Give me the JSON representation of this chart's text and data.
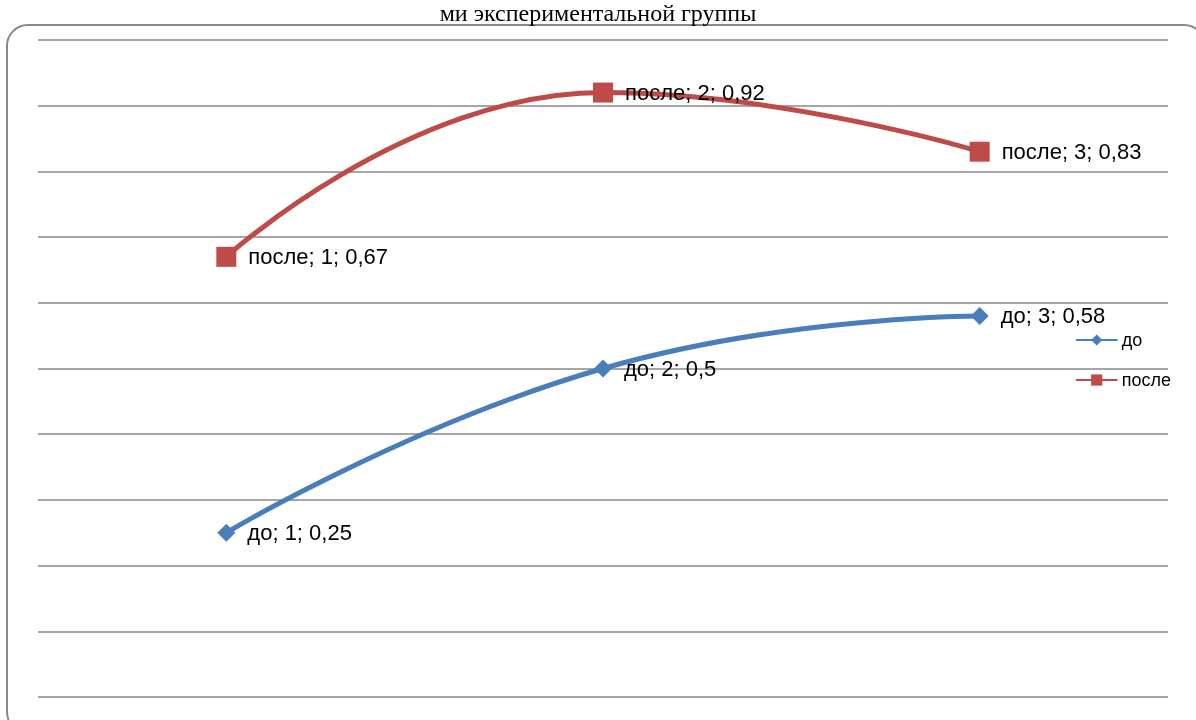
{
  "chart_data": {
    "type": "line",
    "title": "ми экспериментальной группы",
    "categories": [
      null,
      null,
      null
    ],
    "series": [
      {
        "name": "до",
        "color": "#4a7ebb",
        "marker": "diamond",
        "values": [
          0.25,
          0.5,
          0.58
        ],
        "value_labels": [
          "до; 1; 0,25",
          "до; 2; 0,5",
          "до; 3; 0,58"
        ]
      },
      {
        "name": "после",
        "color": "#be4b48",
        "marker": "square",
        "values": [
          0.67,
          0.92,
          0.83
        ],
        "value_labels": [
          "после; 1; 0,67",
          "после; 2; 0,92",
          "после; 3; 0,83"
        ]
      }
    ],
    "ylim": [
      0,
      1
    ],
    "yticks": [
      {
        "value": 0,
        "label": null
      },
      {
        "value": 0.1,
        "label": null
      },
      {
        "value": 0.2,
        "label": null
      },
      {
        "value": 0.3,
        "label": null
      },
      {
        "value": 0.4,
        "label": null
      },
      {
        "value": 0.5,
        "label": null
      },
      {
        "value": 0.6,
        "label": null
      },
      {
        "value": 0.7,
        "label": null
      },
      {
        "value": 0.8,
        "label": null
      },
      {
        "value": 0.9,
        "label": null
      },
      {
        "value": 1,
        "label": null
      }
    ],
    "grid": "y",
    "legend": "right"
  }
}
